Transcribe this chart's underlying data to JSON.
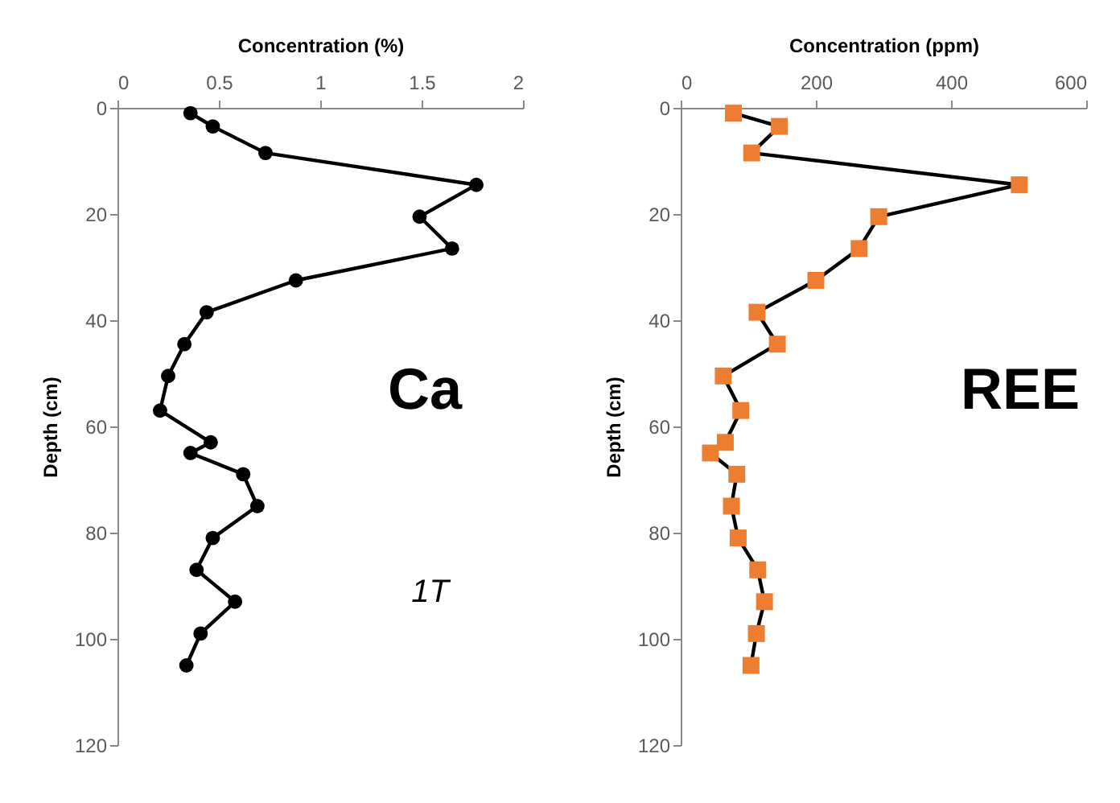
{
  "chart_data": [
    {
      "type": "line",
      "xlabel": "Concentration (%)",
      "ylabel": "Depth (cm)",
      "xlim": [
        0,
        2
      ],
      "xticks": [
        0,
        0.5,
        1,
        1.5,
        2
      ],
      "ylim": [
        120,
        0
      ],
      "yticks": [
        0,
        20,
        40,
        60,
        80,
        100,
        120
      ],
      "marker": "circle",
      "line_style": "solid",
      "annotations": [
        "Ca",
        "1T"
      ],
      "series": [
        {
          "color": "#000000",
          "x": [
            0.36,
            0.47,
            0.73,
            1.77,
            1.49,
            1.65,
            0.88,
            0.44,
            0.33,
            0.25,
            0.21,
            0.46,
            0.36,
            0.62,
            0.69,
            0.47,
            0.39,
            0.58,
            0.41,
            0.34
          ],
          "values": [
            1,
            3.5,
            8.5,
            14.5,
            20.5,
            26.5,
            32.5,
            38.5,
            44.5,
            50.5,
            57,
            63,
            65,
            69,
            75,
            81,
            87,
            93,
            99,
            105
          ]
        }
      ]
    },
    {
      "type": "line",
      "xlabel": "Concentration (ppm)",
      "ylabel": "Depth (cm)",
      "xlim": [
        0,
        600
      ],
      "xticks": [
        0,
        200,
        400,
        600
      ],
      "ylim": [
        120,
        0
      ],
      "yticks": [
        0,
        20,
        40,
        60,
        80,
        100,
        120
      ],
      "marker": "square",
      "line_style": "solid",
      "annotations": [
        "REE"
      ],
      "series": [
        {
          "color": "#ed7d31",
          "x": [
            78,
            146,
            105,
            501,
            293,
            264,
            200,
            113,
            143,
            63,
            89,
            66,
            44,
            83,
            75,
            85,
            114,
            124,
            112,
            104
          ],
          "values": [
            1,
            3.5,
            8.5,
            14.5,
            20.5,
            26.5,
            32.5,
            38.5,
            44.5,
            50.5,
            57,
            63,
            65,
            69,
            75,
            81,
            87,
            93,
            99,
            105
          ]
        }
      ]
    }
  ]
}
